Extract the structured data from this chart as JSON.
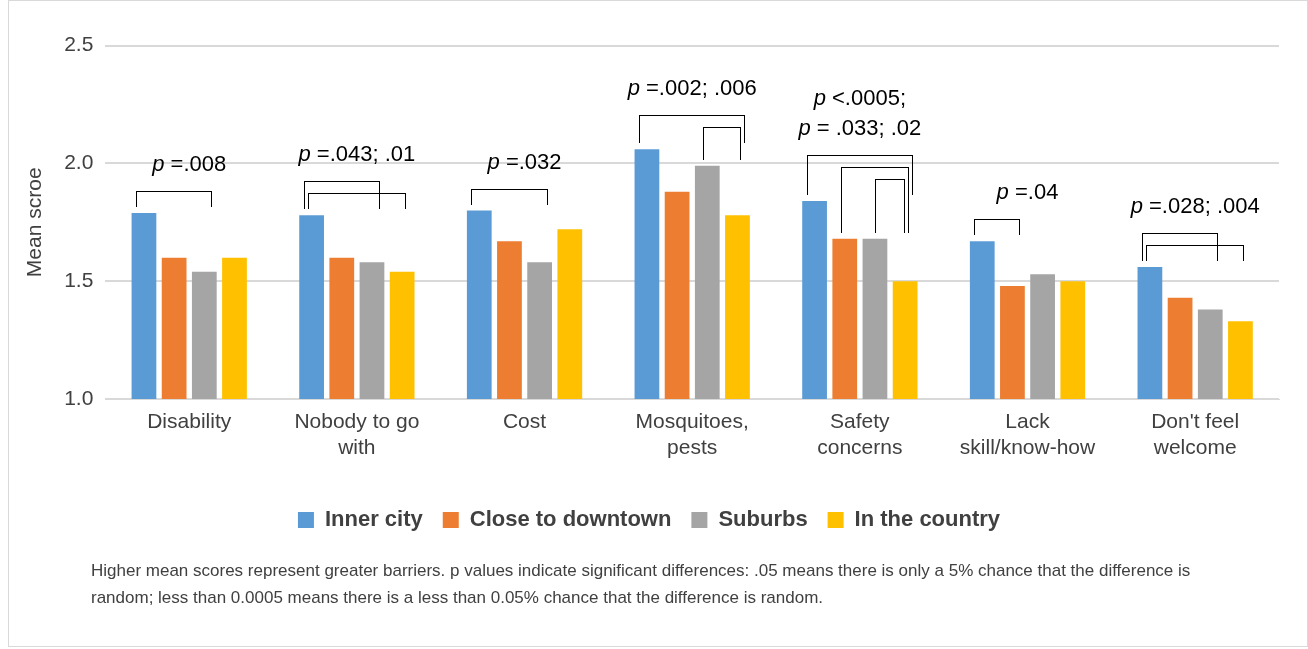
{
  "chart_data": {
    "type": "bar",
    "ylabel": "Mean scroe",
    "categories": [
      "Disability",
      "Nobody to go with",
      "Cost",
      "Mosquitoes, pests",
      "Safety concerns",
      "Lack skill/know-how",
      "Don't feel welcome"
    ],
    "series": [
      {
        "name": "Inner city",
        "color": "#5b9bd5",
        "values": [
          1.79,
          1.78,
          1.8,
          2.06,
          1.84,
          1.67,
          1.56
        ]
      },
      {
        "name": "Close to downtown",
        "color": "#ed7d31",
        "values": [
          1.6,
          1.6,
          1.67,
          1.88,
          1.68,
          1.48,
          1.43
        ]
      },
      {
        "name": "Suburbs",
        "color": "#a5a5a5",
        "values": [
          1.54,
          1.58,
          1.58,
          1.99,
          1.68,
          1.53,
          1.38
        ]
      },
      {
        "name": "In the country",
        "color": "#ffc000",
        "values": [
          1.6,
          1.54,
          1.72,
          1.78,
          1.5,
          1.5,
          1.33
        ]
      }
    ],
    "ylim": [
      1.0,
      2.5
    ],
    "yticks": [
      {
        "value": 1,
        "label": "1.0"
      },
      1.5,
      {
        "value": 2,
        "label": "2.0"
      },
      2.5
    ],
    "grid": "y",
    "legend": "bottom",
    "annotations": [
      "p =.008",
      "p =.043; .01",
      "p =.032",
      "p =.002; .006",
      "p <.0005;\np = .033; .02",
      "p =.04",
      "p =.028; .004",
      "Higher mean scores represent greater barriers.  p  values indicate significant differences: .05 means there is only a 5% chance that the difference is random; less than 0.0005 means there is a less than 0.05% chance that the difference is random."
    ]
  }
}
